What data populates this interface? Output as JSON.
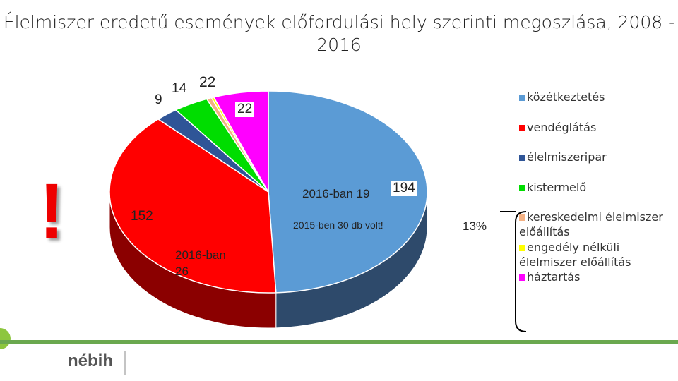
{
  "chart_data": {
    "type": "pie",
    "title": "Élelmiszer eredetű események előfordulási hely szerinti megoszlása, 2008 - 2016",
    "categories": [
      "közétkeztetés",
      "vendéglátás",
      "élelmiszeripar",
      "kistermelő",
      "kereskedelmi élelmiszer előállítás",
      "engedély nélküli élelmiszer előállítás",
      "háztartás"
    ],
    "values": [
      194,
      152,
      9,
      14,
      2,
      1,
      22
    ],
    "colors": [
      "#5b9bd5",
      "#ff0000",
      "#2f5597",
      "#00dd00",
      "#f4b183",
      "#ffff00",
      "#ff00ff"
    ],
    "side_colors": [
      "#2e4a6b",
      "#8b0000",
      "#1a2f55",
      "#007700",
      "#a06040",
      "#999900",
      "#8b008b"
    ],
    "legend": "right",
    "annotations": [
      "22",
      "2016-ban 19",
      "2015-ben 30 db volt!",
      "2016-ban 26",
      "13%",
      "!"
    ]
  },
  "footer": {
    "logo": "nébih"
  }
}
